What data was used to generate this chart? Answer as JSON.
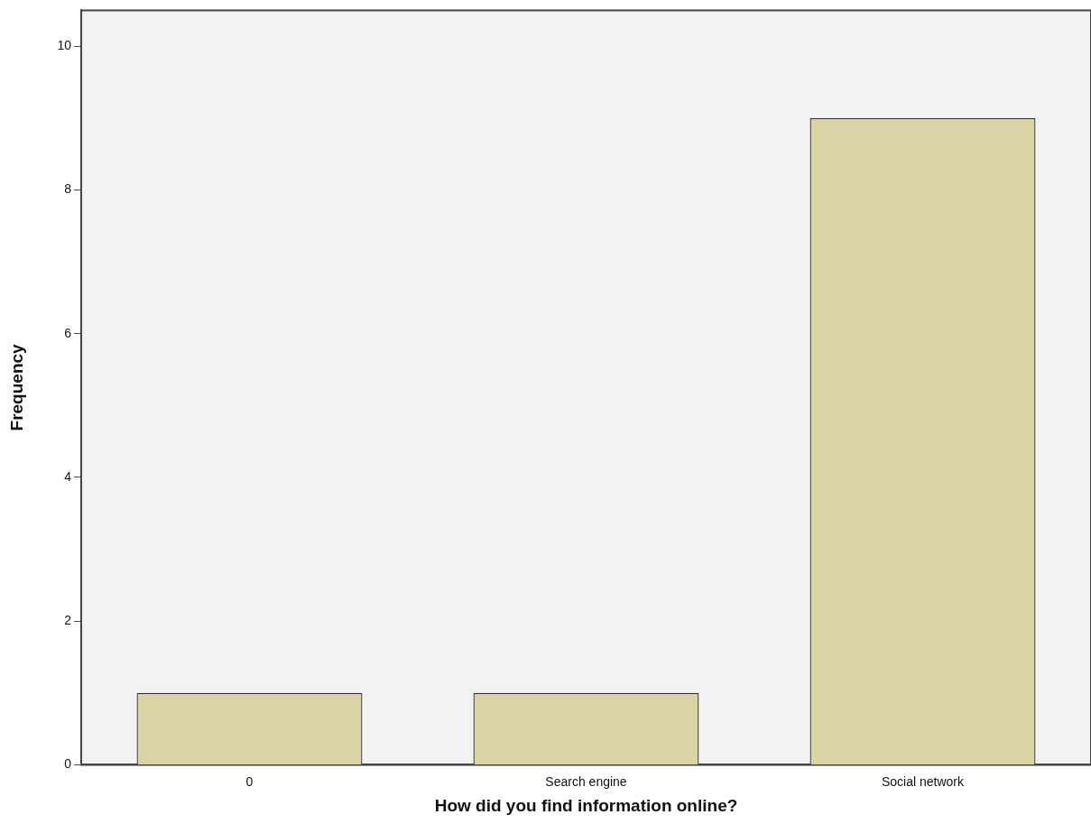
{
  "chart_data": {
    "type": "bar",
    "xlabel": "How did you find information online?",
    "ylabel": "Frequency",
    "categories": [
      "0",
      "Search engine",
      "Social network"
    ],
    "values": [
      1,
      1,
      9
    ],
    "color": "#d9d3a6",
    "ylim": [
      0,
      10.5
    ],
    "yticks": [
      0,
      2,
      4,
      6,
      8,
      10
    ],
    "grid": false,
    "legend": false
  }
}
